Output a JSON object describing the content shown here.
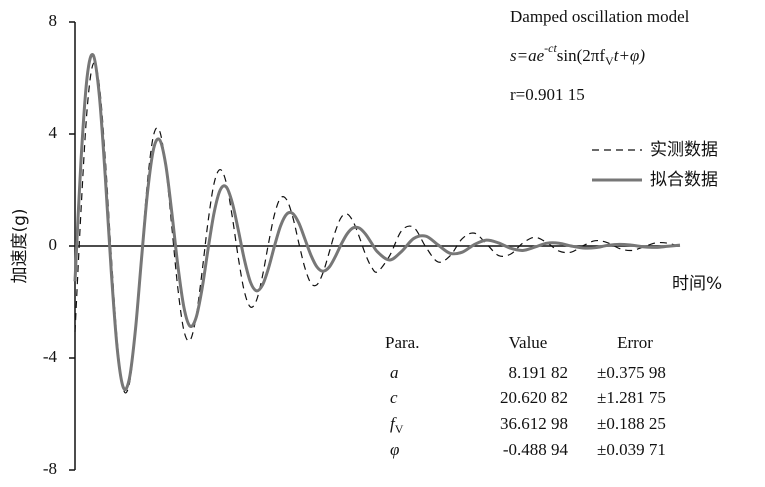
{
  "chart_data": {
    "type": "line",
    "y_label": "加速度(g)",
    "x_label": "时间%",
    "annotation_title": "Damped oscillation model",
    "formula": [
      "s=ae",
      "-ct",
      "sin(2πf",
      "V",
      "t+φ)"
    ],
    "r_label": "r=0.901 15",
    "xlim": [
      0,
      100
    ],
    "ylim": [
      -8,
      8
    ],
    "yticks": [
      -8,
      -4,
      0,
      4,
      8
    ],
    "x": [
      0,
      1,
      2,
      3,
      4,
      5,
      6,
      7,
      8,
      9,
      10,
      11,
      12,
      13,
      14,
      15,
      16,
      17,
      18,
      19,
      20,
      21,
      22,
      23,
      24,
      25,
      26,
      27,
      28,
      29,
      30,
      31,
      32,
      33,
      34,
      35,
      36,
      37,
      38,
      39,
      40,
      41,
      42,
      43,
      44,
      45,
      46,
      47,
      48,
      49,
      50,
      52,
      54,
      56,
      58,
      60,
      62,
      64,
      66,
      68,
      70,
      72,
      74,
      76,
      78,
      80,
      82,
      84,
      86,
      88,
      90,
      92,
      94,
      96,
      98,
      100
    ],
    "series": [
      {
        "name": "实测数据",
        "color": "#111111",
        "dashed": true,
        "values": [
          -3.07,
          1.3,
          4.88,
          6.5,
          5.78,
          3.14,
          -0.36,
          -3.44,
          -5.12,
          -4.9,
          -3.05,
          -0.29,
          2.34,
          3.97,
          4.1,
          2.83,
          0.69,
          -1.51,
          -3.02,
          -3.37,
          -2.55,
          -0.93,
          0.88,
          2.25,
          2.73,
          2.26,
          1.04,
          -0.43,
          -1.63,
          -2.18,
          -1.94,
          -1.06,
          0.11,
          1.15,
          1.72,
          1.65,
          1.03,
          0.1,
          -0.78,
          -1.33,
          -1.38,
          -0.95,
          -0.24,
          0.5,
          1.02,
          1.14,
          0.86,
          0.32,
          -0.29,
          -0.75,
          -0.92,
          -0.35,
          0.55,
          0.66,
          -0.04,
          -0.57,
          -0.35,
          0.26,
          0.46,
          0.08,
          -0.34,
          -0.29,
          0.1,
          0.31,
          0.12,
          -0.18,
          -0.22,
          0.01,
          0.19,
          0.12,
          -0.09,
          -0.16,
          -0.03,
          0.11,
          0.1,
          -0.03
        ]
      },
      {
        "name": "拟合数据",
        "color": "#777777",
        "dashed": false,
        "values": [
          -1.26,
          3.08,
          6.03,
          6.82,
          5.42,
          2.49,
          -0.93,
          -3.71,
          -5.06,
          -4.72,
          -2.97,
          -0.44,
          1.94,
          3.48,
          3.79,
          2.9,
          1.2,
          -0.7,
          -2.19,
          -2.86,
          -2.57,
          -1.53,
          -0.1,
          1.2,
          2.0,
          2.11,
          1.54,
          0.56,
          -0.49,
          -1.29,
          -1.6,
          -1.39,
          -0.78,
          0.02,
          0.73,
          1.14,
          1.16,
          0.82,
          0.25,
          -0.33,
          -0.75,
          -0.9,
          -0.76,
          -0.39,
          0.06,
          0.44,
          0.65,
          0.64,
          0.43,
          0.11,
          -0.21,
          -0.5,
          -0.19,
          0.27,
          0.35,
          0.04,
          -0.26,
          -0.22,
          0.05,
          0.21,
          0.11,
          -0.08,
          -0.16,
          -0.04,
          0.1,
          0.1,
          0.0,
          -0.07,
          -0.06,
          0.02,
          0.06,
          0.03,
          -0.03,
          -0.05,
          -0.01,
          0.03
        ]
      }
    ],
    "table": {
      "header": [
        "Para.",
        "Value",
        "Error"
      ],
      "rows": [
        [
          [
            "a"
          ],
          "8.191 82",
          "±0.375 98"
        ],
        [
          [
            "c"
          ],
          "20.620 82",
          "±1.281 75"
        ],
        [
          [
            "f",
            "V"
          ],
          "36.612 98",
          "±0.188 25"
        ],
        [
          [
            "φ"
          ],
          "-0.488 94",
          "±0.039 71"
        ]
      ]
    }
  }
}
